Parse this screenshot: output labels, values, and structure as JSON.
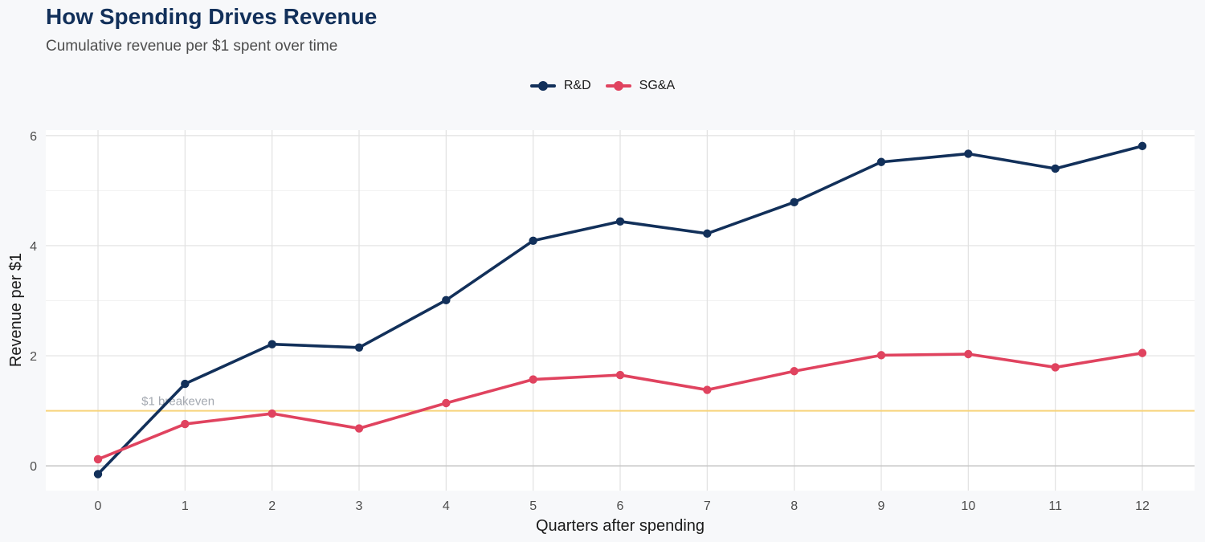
{
  "chart_data": {
    "type": "line",
    "title": "How Spending Drives Revenue",
    "subtitle": "Cumulative revenue per $1 spent over time",
    "xlabel": "Quarters after spending",
    "ylabel": "Revenue per $1",
    "x": [
      0,
      1,
      2,
      3,
      4,
      5,
      6,
      7,
      8,
      9,
      10,
      11,
      12
    ],
    "xlim": [
      -0.6,
      12.6
    ],
    "ylim": [
      -0.45,
      6.1
    ],
    "yticks": [
      0,
      2,
      4,
      6
    ],
    "grid": true,
    "legend_position": "top-center",
    "series": [
      {
        "name": "R&D",
        "color": "#12305a",
        "values": [
          -0.15,
          1.49,
          2.21,
          2.15,
          3.01,
          4.09,
          4.44,
          4.22,
          4.79,
          5.52,
          5.67,
          5.4,
          5.81
        ]
      },
      {
        "name": "SG&A",
        "color": "#e0435f",
        "values": [
          0.12,
          0.76,
          0.95,
          0.68,
          1.14,
          1.57,
          1.65,
          1.38,
          1.72,
          2.01,
          2.03,
          1.79,
          2.05
        ]
      }
    ],
    "reference_lines": [
      {
        "y": 1,
        "label": "$1 breakeven",
        "color": "#f7d37a"
      },
      {
        "y": 0,
        "label": "",
        "color": "#c9c9c9"
      }
    ]
  }
}
